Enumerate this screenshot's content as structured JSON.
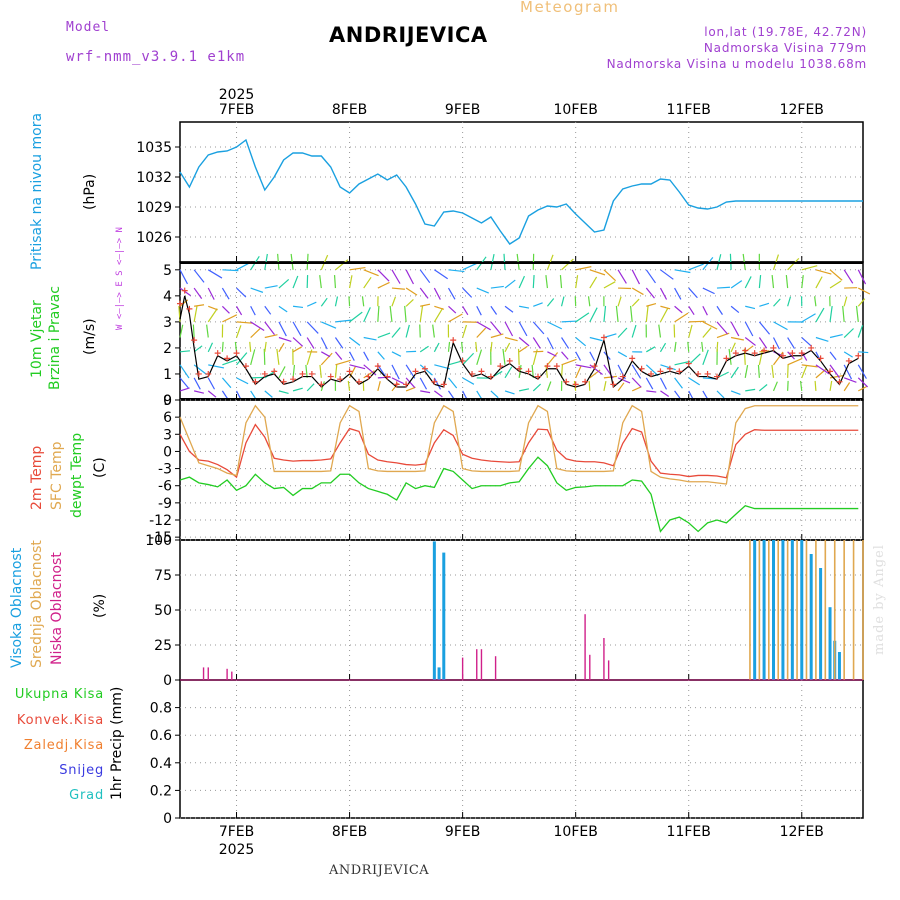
{
  "header": {
    "title": "ANDRIJEVICA",
    "meteogram_label": "Meteogram",
    "model_label": "Model",
    "model_value": "wrf-nmm_v3.9.1 e1km",
    "location_line": "lon,lat (19.78E, 42.72N)",
    "elevation_line": "Nadmorska Visina 779m",
    "model_elevation_line": "Nadmorska Visina u modelu 1038.68m",
    "bottom_location": "ANDRIJEVICA",
    "signature": "made by Angel"
  },
  "time_axis": {
    "year": "2025",
    "labels": [
      "7FEB",
      "8FEB",
      "9FEB",
      "10FEB",
      "11FEB",
      "12FEB"
    ],
    "start": "2025-02-06 12:00",
    "end": "2025-02-12 13:00"
  },
  "panel_labels": {
    "pressure": {
      "name": "Pritisak na nivou mora",
      "unit": "(hPa)"
    },
    "wind": {
      "name_line1": "10m Vjetar",
      "name_line2": "Brzina i Pravac",
      "unit": "(m/s)",
      "compass": "W <–|–> E   S <–|–> N"
    },
    "temp": {
      "t2m": "2m Temp",
      "sfc": "SFC Temp",
      "dewpt": "dewpt Temp",
      "unit": "(C)"
    },
    "cloud": {
      "high": "Visoka Oblacnost",
      "mid": "Srednja Oblacnost",
      "low": "Niska Oblacnost",
      "unit": "(%)"
    },
    "precip": {
      "unit": "1hr Precip (mm)",
      "legend": [
        "Ukupna Kisa",
        "Konvek.Kisa",
        "Zaledj.Kisa",
        "Snijeg",
        "Grad"
      ]
    }
  },
  "colors": {
    "pressure": "#1aa0e0",
    "t2m": "#e84a3a",
    "sfc": "#e0a850",
    "dewpt": "#22cc22",
    "cloud_high": "#1aa0e0",
    "cloud_mid": "#e0a850",
    "cloud_low": "#d0208a",
    "rain_total": "#22cc22",
    "rain_conv": "#e84a3a",
    "rain_freezing": "#f08030",
    "snow": "#3a3ae0",
    "hail": "#20c0c0",
    "wind_speed_line": "#000000",
    "gust_marker": "#e84a3a"
  },
  "chart_data": [
    {
      "type": "line",
      "title": "Pritisak na nivou mora",
      "ylabel": "(hPa)",
      "ylim": [
        1023.5,
        1037.5
      ],
      "yticks": [
        1026,
        1029,
        1032,
        1035
      ],
      "x_hours_from_start": [
        0,
        2,
        4,
        6,
        8,
        10,
        12,
        14,
        16,
        18,
        20,
        22,
        24,
        26,
        28,
        30,
        32,
        34,
        36,
        38,
        40,
        42,
        44,
        46,
        48,
        50,
        52,
        54,
        56,
        58,
        60,
        62,
        64,
        66,
        68,
        70,
        72,
        74,
        76,
        78,
        80,
        82,
        84,
        86,
        88,
        90,
        92,
        94,
        96,
        98,
        100,
        102,
        104,
        106,
        108,
        110,
        112,
        114,
        116,
        118,
        120,
        122,
        124,
        126,
        128,
        130,
        132,
        134,
        136,
        138,
        140,
        142,
        145
      ],
      "series": [
        {
          "name": "Pritisak na nivou mora",
          "values": [
            1032.5,
            1031,
            1033,
            1034.2,
            1034.5,
            1034.6,
            1035,
            1035.7,
            1033,
            1030.7,
            1032,
            1033.7,
            1034.4,
            1034.4,
            1034.1,
            1034.1,
            1033,
            1031,
            1030.4,
            1031.3,
            1031.8,
            1032.3,
            1031.7,
            1032.2,
            1031,
            1029.3,
            1027.3,
            1027.1,
            1028.5,
            1028.6,
            1028.4,
            1027.9,
            1027.4,
            1028,
            1026.6,
            1025.3,
            1025.9,
            1028.1,
            1028.7,
            1029.1,
            1029,
            1029.3,
            1028.3,
            1027.4,
            1026.5,
            1026.7,
            1029.6,
            1030.8,
            1031.1,
            1031.3,
            1031.3,
            1031.8,
            1031.7,
            1030.5,
            1029.2,
            1028.9,
            1028.8,
            1029,
            1029.5,
            1029.6,
            1029.6,
            1029.6,
            1029.6,
            1029.6,
            1029.6,
            1029.6,
            1029.6,
            1029.6,
            1029.6,
            1029.6,
            1029.6,
            1029.6,
            1029.6
          ]
        }
      ]
    },
    {
      "type": "line",
      "title": "10m Vjetar Brzina i Pravac",
      "ylabel": "(m/s)",
      "ylim": [
        0,
        5.3
      ],
      "yticks": [
        0,
        1,
        2,
        3,
        4,
        5
      ],
      "x_hours_from_start": [
        0,
        1,
        2,
        3,
        4,
        6,
        8,
        10,
        12,
        14,
        16,
        18,
        20,
        22,
        24,
        26,
        28,
        30,
        32,
        34,
        36,
        38,
        40,
        42,
        44,
        46,
        48,
        50,
        52,
        54,
        56,
        58,
        60,
        62,
        64,
        66,
        68,
        70,
        72,
        74,
        76,
        78,
        80,
        82,
        84,
        86,
        88,
        90,
        92,
        94,
        96,
        98,
        100,
        102,
        104,
        106,
        108,
        110,
        112,
        114,
        116,
        118,
        120,
        122,
        124,
        126,
        128,
        130,
        132,
        134,
        136,
        138,
        140,
        142,
        144
      ],
      "series": [
        {
          "name": "10m Vjetar",
          "values": [
            3.1,
            4.0,
            3.3,
            2.0,
            0.8,
            0.9,
            1.7,
            1.5,
            1.7,
            1.2,
            0.6,
            0.9,
            1.0,
            0.6,
            0.7,
            0.9,
            0.9,
            0.5,
            0.8,
            0.7,
            1.0,
            0.6,
            0.8,
            1.2,
            0.8,
            0.5,
            0.5,
            1.0,
            1.1,
            0.6,
            0.5,
            2.2,
            1.4,
            0.9,
            1.0,
            0.8,
            1.2,
            1.4,
            1.1,
            1.0,
            0.8,
            1.2,
            1.2,
            0.6,
            0.5,
            0.6,
            1.2,
            2.3,
            0.5,
            0.8,
            1.5,
            1.1,
            0.9,
            1.0,
            1.1,
            1.0,
            1.3,
            0.9,
            0.9,
            0.8,
            1.5,
            1.7,
            1.8,
            1.7,
            1.8,
            1.9,
            1.6,
            1.7,
            1.7,
            1.9,
            1.5,
            1.0,
            0.6,
            1.4,
            1.6
          ]
        },
        {
          "name": "gust",
          "values": [
            3.7,
            4.2,
            3.5,
            2.3,
            1.0,
            1.0,
            1.8,
            1.6,
            1.8,
            1.3,
            0.7,
            1.0,
            1.1,
            0.7,
            0.8,
            1.0,
            1.0,
            0.6,
            0.9,
            0.8,
            1.1,
            0.7,
            0.9,
            1.3,
            0.9,
            0.6,
            0.6,
            1.1,
            1.2,
            0.7,
            0.6,
            2.3,
            1.5,
            1.0,
            1.1,
            0.9,
            1.3,
            1.5,
            1.2,
            1.1,
            0.9,
            1.3,
            1.3,
            0.7,
            0.6,
            0.7,
            1.3,
            2.4,
            0.6,
            0.9,
            1.6,
            1.2,
            1.0,
            1.1,
            1.2,
            1.1,
            1.4,
            1.0,
            1.0,
            0.9,
            1.6,
            1.8,
            1.9,
            1.8,
            1.9,
            2.0,
            1.7,
            1.8,
            1.8,
            2.0,
            1.6,
            1.1,
            0.7,
            1.5,
            1.7
          ]
        }
      ]
    },
    {
      "type": "line",
      "title": "Temperature",
      "ylabel": "(C)",
      "ylim": [
        -15.5,
        9
      ],
      "yticks": [
        -15,
        -12,
        -9,
        -6,
        -3,
        0,
        3,
        6,
        9
      ],
      "x_hours_from_start": [
        0,
        2,
        4,
        6,
        8,
        10,
        12,
        14,
        16,
        18,
        20,
        22,
        24,
        26,
        28,
        30,
        32,
        34,
        36,
        38,
        40,
        42,
        44,
        46,
        48,
        50,
        52,
        54,
        56,
        58,
        60,
        62,
        64,
        66,
        68,
        70,
        72,
        74,
        76,
        78,
        80,
        82,
        84,
        86,
        88,
        90,
        92,
        94,
        96,
        98,
        100,
        102,
        104,
        106,
        108,
        110,
        112,
        114,
        116,
        118,
        120,
        122,
        124,
        126,
        128,
        130,
        132,
        134,
        136,
        138,
        140,
        142,
        144
      ],
      "series": [
        {
          "name": "2m Temp",
          "values": [
            3,
            0,
            -1.5,
            -1.7,
            -2.3,
            -3.2,
            -4.5,
            1.5,
            4.7,
            2.5,
            -1.2,
            -1.5,
            -1.7,
            -1.6,
            -1.6,
            -1.5,
            -1.3,
            1.5,
            4,
            3.5,
            -0.5,
            -1.5,
            -1.8,
            -2,
            -2.3,
            -2.4,
            -2.2,
            1.5,
            3.8,
            2.8,
            -0.5,
            -1.2,
            -1.5,
            -1.7,
            -1.8,
            -1.9,
            -1.8,
            1.5,
            3.9,
            3.8,
            0.2,
            -1.3,
            -1.7,
            -1.8,
            -1.8,
            -2,
            -2.5,
            1.4,
            4,
            3.4,
            -1.7,
            -3.8,
            -4,
            -4.1,
            -4.4,
            -4.2,
            -4.2,
            -4.3,
            -4.6,
            1.2,
            3,
            3.8,
            3.7,
            3.7,
            3.7,
            3.7,
            3.7,
            3.7,
            3.7,
            3.7,
            3.7,
            3.7,
            3.7
          ]
        },
        {
          "name": "SFC Temp",
          "values": [
            6,
            2,
            -2,
            -2.5,
            -3,
            -3.8,
            -4.2,
            5,
            8,
            6,
            -3.5,
            -3.5,
            -3.5,
            -3.5,
            -3.5,
            -3.5,
            -3.4,
            5,
            8,
            7,
            -3,
            -3.4,
            -3.5,
            -3.5,
            -3.5,
            -3.5,
            -3.4,
            5,
            8,
            7,
            -3,
            -3.4,
            -3.5,
            -3.5,
            -3.5,
            -3.5,
            -3.4,
            5,
            8,
            7,
            -3,
            -3.4,
            -3.5,
            -3.5,
            -3.5,
            -3.5,
            -3.4,
            5,
            8,
            7,
            -3.5,
            -4.5,
            -4.8,
            -5,
            -5.3,
            -5.3,
            -5.3,
            -5.5,
            -5.7,
            5,
            7.5,
            8,
            8,
            8,
            8,
            8,
            8,
            8,
            8,
            8,
            8,
            8,
            8
          ]
        },
        {
          "name": "dewpt Temp",
          "values": [
            -5,
            -4.5,
            -5.5,
            -5.8,
            -6.2,
            -5,
            -6.8,
            -6,
            -4,
            -5.5,
            -6.5,
            -6.3,
            -7.7,
            -6.5,
            -6.5,
            -5.5,
            -5.5,
            -4,
            -4,
            -5.5,
            -6.5,
            -7,
            -7.5,
            -8.5,
            -5.5,
            -6.5,
            -6,
            -6.3,
            -3,
            -3.5,
            -5,
            -6.5,
            -6,
            -6,
            -6,
            -5.5,
            -5.3,
            -3,
            -1,
            -2.5,
            -5.5,
            -6.8,
            -6.3,
            -6.2,
            -6,
            -6,
            -6,
            -6,
            -5,
            -5.2,
            -7.5,
            -14,
            -12,
            -11.5,
            -12.5,
            -14,
            -12.5,
            -12,
            -12.5,
            -11,
            -9.5,
            -10,
            -10,
            -10,
            -10,
            -10,
            -10,
            -10,
            -10,
            -10,
            -10,
            -10,
            -10
          ]
        }
      ]
    },
    {
      "type": "bar",
      "title": "Oblacnost",
      "ylabel": "(%)",
      "ylim": [
        0,
        100
      ],
      "yticks": [
        0,
        25,
        50,
        75,
        100
      ],
      "series": [
        {
          "name": "Visoka Oblacnost",
          "x_hours_from_start": [
            54,
            55,
            56,
            122,
            124,
            126,
            128,
            130,
            132,
            134,
            136,
            138,
            139,
            140
          ],
          "values": [
            99,
            9,
            91,
            100,
            100,
            100,
            100,
            100,
            100,
            90,
            80,
            52,
            28,
            20
          ]
        },
        {
          "name": "Srednja Oblacnost",
          "x_hours_from_start": [
            121,
            123,
            125,
            127,
            129,
            131,
            133,
            135,
            137,
            139,
            141,
            143,
            145
          ],
          "values": [
            100,
            100,
            100,
            100,
            100,
            100,
            100,
            100,
            100,
            100,
            100,
            100,
            100
          ]
        },
        {
          "name": "Niska Oblacnost",
          "x_hours_from_start": [
            5,
            6,
            10,
            11,
            60,
            63,
            64,
            67,
            86,
            87,
            90,
            91
          ],
          "values": [
            9,
            9,
            8,
            6,
            16,
            22,
            22,
            17,
            47,
            18,
            30,
            14
          ]
        }
      ]
    },
    {
      "type": "bar",
      "title": "1hr Precip",
      "ylabel": "1hr Precip (mm)",
      "ylim": [
        0,
        1.0
      ],
      "yticks": [
        0,
        0.2,
        0.4,
        0.6,
        0.8
      ],
      "series": [
        {
          "name": "Ukupna Kisa",
          "values": []
        }
      ]
    }
  ]
}
